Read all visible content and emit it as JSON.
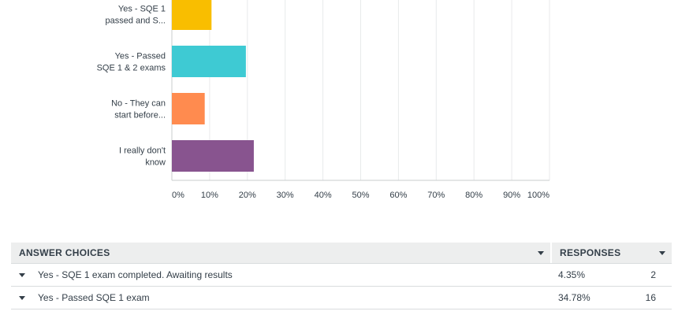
{
  "chart_data": {
    "type": "bar",
    "orientation": "horizontal",
    "categories": [
      [
        "Yes - SQE 1",
        "passed and S..."
      ],
      [
        "Yes - Passed",
        "SQE 1 & 2 exams"
      ],
      [
        "No - They can",
        "start before..."
      ],
      [
        "I really don't",
        "know"
      ]
    ],
    "values": [
      10.5,
      19.6,
      8.7,
      21.7
    ],
    "colors": [
      "#f9be00",
      "#3ecad3",
      "#ff8b4f",
      "#88548f"
    ],
    "xlim": [
      0,
      100
    ],
    "x_ticks": [
      "0%",
      "10%",
      "20%",
      "30%",
      "40%",
      "50%",
      "60%",
      "70%",
      "80%",
      "90%",
      "100%"
    ],
    "grid": true
  },
  "table": {
    "headers": {
      "choices": "ANSWER CHOICES",
      "responses": "RESPONSES"
    },
    "rows": [
      {
        "choice": "Yes - SQE 1 exam completed. Awaiting results",
        "percent": "4.35%",
        "count": "2"
      },
      {
        "choice": "Yes - Passed SQE 1 exam",
        "percent": "34.78%",
        "count": "16"
      }
    ]
  },
  "icons": {
    "sort": "sort-caret-icon",
    "row_toggle": "caret-down-icon"
  }
}
